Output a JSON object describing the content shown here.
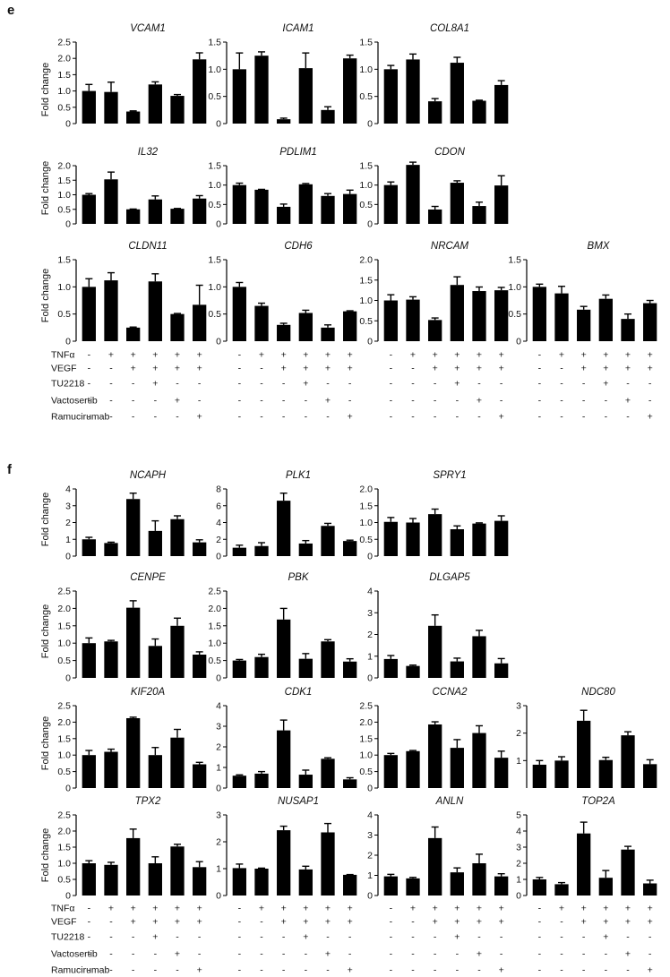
{
  "panels": [
    {
      "letter": "e",
      "conditions": [
        "TNFα",
        "VEGF",
        "TU2218",
        "Vactosertib",
        "Ramucirumab"
      ]
    },
    {
      "letter": "f",
      "conditions": [
        "TNFα",
        "VEGF",
        "TU2218",
        "Vactosertib",
        "Ramucirumab"
      ]
    }
  ],
  "treatment_signs": [
    [
      "-",
      "+",
      "+",
      "+",
      "+",
      "+"
    ],
    [
      "-",
      "-",
      "+",
      "+",
      "+",
      "+"
    ],
    [
      "-",
      "-",
      "-",
      "+",
      "-",
      "-"
    ],
    [
      "-",
      "-",
      "-",
      "-",
      "+",
      "-"
    ],
    [
      "-",
      "-",
      "-",
      "-",
      "-",
      "+"
    ]
  ],
  "ylabel": "Fold change",
  "colors": {
    "bar": "#000000",
    "axis": "#000000"
  },
  "chart_data": [
    {
      "type": "bar",
      "panel": "e",
      "title": "VCAM1",
      "ylim": [
        0,
        2.5
      ],
      "yticks": [
        "0",
        "0.5",
        "1.0",
        "1.5",
        "2.0",
        "2.5"
      ],
      "values": [
        1.0,
        0.97,
        0.37,
        1.2,
        0.85,
        1.97
      ],
      "errors": [
        0.2,
        0.3,
        0.02,
        0.08,
        0.04,
        0.2
      ]
    },
    {
      "type": "bar",
      "panel": "e",
      "title": "ICAM1",
      "ylim": [
        0,
        1.5
      ],
      "yticks": [
        "0",
        "0.5",
        "1.0",
        "1.5"
      ],
      "values": [
        1.0,
        1.25,
        0.08,
        1.02,
        0.25,
        1.2
      ],
      "errors": [
        0.3,
        0.07,
        0.02,
        0.28,
        0.06,
        0.06
      ]
    },
    {
      "type": "bar",
      "panel": "e",
      "title": "COL8A1",
      "ylim": [
        0,
        1.5
      ],
      "yticks": [
        "0",
        "0.5",
        "1.0",
        "1.5"
      ],
      "values": [
        1.0,
        1.18,
        0.41,
        1.12,
        0.42,
        0.71
      ],
      "errors": [
        0.07,
        0.1,
        0.05,
        0.1,
        0.01,
        0.08
      ]
    },
    {
      "type": "bar",
      "panel": "e",
      "title": "IL32",
      "ylim": [
        0,
        2.0
      ],
      "yticks": [
        "0",
        "0.5",
        "1.0",
        "1.5",
        "2.0"
      ],
      "values": [
        1.0,
        1.53,
        0.5,
        0.84,
        0.52,
        0.87
      ],
      "errors": [
        0.04,
        0.25,
        0.01,
        0.12,
        0.01,
        0.1
      ]
    },
    {
      "type": "bar",
      "panel": "e",
      "title": "PDLIM1",
      "ylim": [
        0,
        1.5
      ],
      "yticks": [
        "0",
        "0.5",
        "1.0",
        "1.5"
      ],
      "values": [
        1.0,
        0.88,
        0.44,
        1.02,
        0.72,
        0.77
      ],
      "errors": [
        0.05,
        0.01,
        0.07,
        0.02,
        0.06,
        0.1
      ]
    },
    {
      "type": "bar",
      "panel": "e",
      "title": "CDON",
      "ylim": [
        0,
        1.5
      ],
      "yticks": [
        "0",
        "0.5",
        "1.0",
        "1.5"
      ],
      "values": [
        1.0,
        1.52,
        0.37,
        1.06,
        0.46,
        0.99
      ],
      "errors": [
        0.08,
        0.07,
        0.08,
        0.05,
        0.1,
        0.25
      ]
    },
    {
      "type": "bar",
      "panel": "e",
      "title": "CLDN11",
      "ylim": [
        0,
        1.5
      ],
      "yticks": [
        "0",
        "0.5",
        "1.0",
        "1.5"
      ],
      "values": [
        1.0,
        1.12,
        0.25,
        1.1,
        0.5,
        0.67
      ],
      "errors": [
        0.15,
        0.14,
        0.01,
        0.14,
        0.01,
        0.36
      ]
    },
    {
      "type": "bar",
      "panel": "e",
      "title": "CDH6",
      "ylim": [
        0,
        1.5
      ],
      "yticks": [
        "0",
        "0.5",
        "1.0",
        "1.5"
      ],
      "values": [
        1.0,
        0.65,
        0.3,
        0.52,
        0.25,
        0.55
      ],
      "errors": [
        0.08,
        0.05,
        0.03,
        0.05,
        0.05,
        0.01
      ]
    },
    {
      "type": "bar",
      "panel": "e",
      "title": "NRCAM",
      "ylim": [
        0,
        2.0
      ],
      "yticks": [
        "0",
        "0.5",
        "1.0",
        "1.5",
        "2.0"
      ],
      "values": [
        1.0,
        1.02,
        0.52,
        1.38,
        1.23,
        1.25
      ],
      "errors": [
        0.14,
        0.07,
        0.05,
        0.2,
        0.1,
        0.07
      ]
    },
    {
      "type": "bar",
      "panel": "e",
      "title": "BMX",
      "ylim": [
        0,
        1.5
      ],
      "yticks": [
        "0",
        "0.5",
        "1.0",
        "1.5"
      ],
      "values": [
        1.0,
        0.88,
        0.58,
        0.78,
        0.41,
        0.7
      ],
      "errors": [
        0.05,
        0.13,
        0.06,
        0.07,
        0.09,
        0.05
      ]
    },
    {
      "type": "bar",
      "panel": "f",
      "title": "NCAPH",
      "ylim": [
        0,
        4
      ],
      "yticks": [
        "0",
        "1",
        "2",
        "3",
        "4"
      ],
      "values": [
        1.0,
        0.78,
        3.4,
        1.5,
        2.2,
        0.82
      ],
      "errors": [
        0.12,
        0.05,
        0.35,
        0.6,
        0.2,
        0.15
      ]
    },
    {
      "type": "bar",
      "panel": "f",
      "title": "PLK1",
      "ylim": [
        0,
        8
      ],
      "yticks": [
        "0",
        "2",
        "4",
        "6",
        "8"
      ],
      "values": [
        1.0,
        1.2,
        6.6,
        1.5,
        3.6,
        1.8
      ],
      "errors": [
        0.3,
        0.4,
        0.9,
        0.35,
        0.3,
        0.1
      ]
    },
    {
      "type": "bar",
      "panel": "f",
      "title": "SPRY1",
      "ylim": [
        0,
        2.0
      ],
      "yticks": [
        "0",
        "0.5",
        "1.0",
        "1.5",
        "2.0"
      ],
      "values": [
        1.02,
        1.0,
        1.25,
        0.8,
        0.97,
        1.05
      ],
      "errors": [
        0.13,
        0.12,
        0.15,
        0.1,
        0.02,
        0.15
      ]
    },
    {
      "type": "bar",
      "panel": "f",
      "title": "CENPE",
      "ylim": [
        0,
        2.5
      ],
      "yticks": [
        "0",
        "0.5",
        "1.0",
        "1.5",
        "2.0",
        "2.5"
      ],
      "values": [
        1.0,
        1.05,
        2.02,
        0.92,
        1.5,
        0.67
      ],
      "errors": [
        0.15,
        0.03,
        0.2,
        0.2,
        0.22,
        0.08
      ]
    },
    {
      "type": "bar",
      "panel": "f",
      "title": "PBK",
      "ylim": [
        0,
        2.5
      ],
      "yticks": [
        "0",
        "0.5",
        "1.0",
        "1.5",
        "2.0",
        "2.5"
      ],
      "values": [
        0.5,
        0.6,
        1.68,
        0.55,
        1.05,
        0.47
      ],
      "errors": [
        0.03,
        0.08,
        0.32,
        0.15,
        0.05,
        0.08
      ]
    },
    {
      "type": "bar",
      "panel": "f",
      "title": "DLGAP5",
      "ylim": [
        0,
        4
      ],
      "yticks": [
        "0",
        "1",
        "2",
        "3",
        "4"
      ],
      "values": [
        0.87,
        0.55,
        2.4,
        0.76,
        1.92,
        0.67
      ],
      "errors": [
        0.16,
        0.04,
        0.5,
        0.15,
        0.27,
        0.22
      ]
    },
    {
      "type": "bar",
      "panel": "f",
      "title": "KIF20A",
      "ylim": [
        0,
        2.5
      ],
      "yticks": [
        "0",
        "0.5",
        "1.0",
        "1.5",
        "2.0",
        "2.5"
      ],
      "values": [
        1.0,
        1.1,
        2.12,
        1.0,
        1.53,
        0.72
      ],
      "errors": [
        0.14,
        0.08,
        0.03,
        0.23,
        0.25,
        0.06
      ]
    },
    {
      "type": "bar",
      "panel": "f",
      "title": "CDK1",
      "ylim": [
        0,
        4
      ],
      "yticks": [
        "0",
        "1",
        "2",
        "3",
        "4"
      ],
      "values": [
        0.6,
        0.7,
        2.8,
        0.65,
        1.42,
        0.42
      ],
      "errors": [
        0.04,
        0.1,
        0.5,
        0.22,
        0.05,
        0.08
      ]
    },
    {
      "type": "bar",
      "panel": "f",
      "title": "CCNA2",
      "ylim": [
        0,
        2.5
      ],
      "yticks": [
        "0",
        "0.5",
        "1.0",
        "1.5",
        "2.0",
        "2.5"
      ],
      "values": [
        1.0,
        1.12,
        1.93,
        1.22,
        1.67,
        0.92
      ],
      "errors": [
        0.05,
        0.02,
        0.08,
        0.25,
        0.22,
        0.2
      ]
    },
    {
      "type": "bar",
      "panel": "f",
      "title": "NDC80",
      "ylim": [
        0,
        3
      ],
      "yticks": [
        "1",
        "2",
        "3"
      ],
      "values": [
        0.85,
        1.0,
        2.45,
        1.02,
        1.92,
        0.87
      ],
      "errors": [
        0.15,
        0.14,
        0.38,
        0.1,
        0.13,
        0.16
      ]
    },
    {
      "type": "bar",
      "panel": "f",
      "title": "TPX2",
      "ylim": [
        0,
        2.5
      ],
      "yticks": [
        "0",
        "0.5",
        "1.0",
        "1.5",
        "2.0",
        "2.5"
      ],
      "values": [
        1.0,
        0.95,
        1.78,
        1.0,
        1.52,
        0.88
      ],
      "errors": [
        0.08,
        0.08,
        0.28,
        0.2,
        0.07,
        0.17
      ]
    },
    {
      "type": "bar",
      "panel": "f",
      "title": "NUSAP1",
      "ylim": [
        0,
        3
      ],
      "yticks": [
        "0",
        "1",
        "2",
        "3"
      ],
      "values": [
        1.02,
        1.0,
        2.43,
        0.97,
        2.35,
        0.77
      ],
      "errors": [
        0.15,
        0.02,
        0.15,
        0.12,
        0.33,
        0.01
      ]
    },
    {
      "type": "bar",
      "panel": "f",
      "title": "ANLN",
      "ylim": [
        0,
        4
      ],
      "yticks": [
        "0",
        "1",
        "2",
        "3",
        "4"
      ],
      "values": [
        0.95,
        0.85,
        2.85,
        1.15,
        1.6,
        0.95
      ],
      "errors": [
        0.1,
        0.05,
        0.55,
        0.22,
        0.45,
        0.13
      ]
    },
    {
      "type": "bar",
      "panel": "f",
      "title": "TOP2A",
      "ylim": [
        0,
        5
      ],
      "yticks": [
        "0",
        "1",
        "2",
        "3",
        "4",
        "5"
      ],
      "values": [
        1.0,
        0.7,
        3.85,
        1.1,
        2.85,
        0.75
      ],
      "errors": [
        0.12,
        0.1,
        0.7,
        0.45,
        0.2,
        0.2
      ]
    }
  ]
}
